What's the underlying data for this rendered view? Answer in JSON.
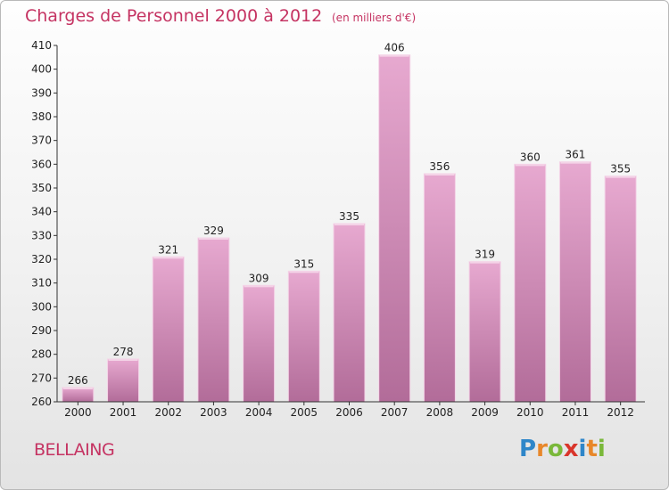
{
  "header": {
    "title": "Charges de Personnel 2000 à 2012",
    "subtitle": "(en milliers d'€)"
  },
  "footer": {
    "place": "BELLAING",
    "logo_letters": [
      "P",
      "r",
      "o",
      "x",
      "i",
      "t",
      "i"
    ],
    "logo_colors": [
      "#2e86c9",
      "#e8872a",
      "#7ab83a",
      "#d9352b",
      "#2e86c9",
      "#e8872a",
      "#7ab83a"
    ]
  },
  "colors": {
    "bar_top": "#e7a9d0",
    "bar_bottom": "#b26c99",
    "bar_edge": "#f4d3e7",
    "title": "#c53362",
    "axis": "#333333"
  },
  "chart_data": {
    "type": "bar",
    "title": "Charges de Personnel 2000 à 2012",
    "subtitle": "(en milliers d'€)",
    "categories": [
      "2000",
      "2001",
      "2002",
      "2003",
      "2004",
      "2005",
      "2006",
      "2007",
      "2008",
      "2009",
      "2010",
      "2011",
      "2012"
    ],
    "values": [
      266,
      278,
      321,
      329,
      309,
      315,
      335,
      406,
      356,
      319,
      360,
      361,
      355
    ],
    "ylim": [
      260,
      410
    ],
    "ytick_step": 10,
    "grid": false,
    "xlabel": "",
    "ylabel": ""
  }
}
